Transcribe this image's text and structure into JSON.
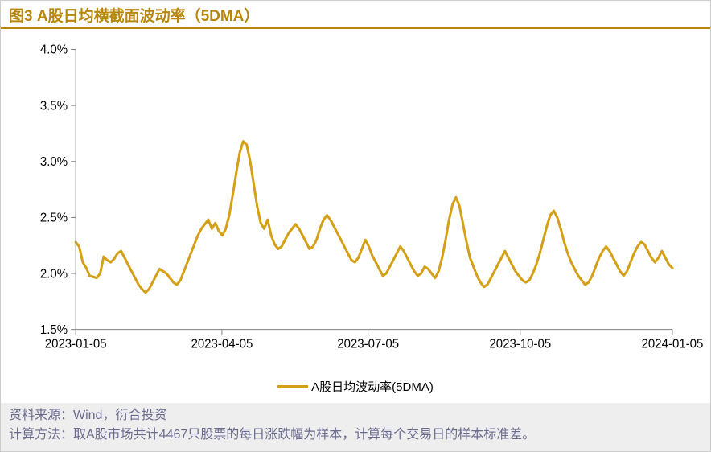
{
  "title": {
    "text": "图3  A股日均横截面波动率（5DMA）",
    "color": "#b8860b",
    "fontsize": 19,
    "fontweight": "bold"
  },
  "separator_color": "#b8860b",
  "chart": {
    "type": "line",
    "background_color": "#ffffff",
    "line_color": "#d4a017",
    "line_width": 3,
    "ylim": [
      1.5,
      4.0
    ],
    "ytick_step": 0.5,
    "yticks": [
      "1.5%",
      "2.0%",
      "2.5%",
      "3.0%",
      "3.5%",
      "4.0%"
    ],
    "xticks": [
      "2023-01-05",
      "2023-04-05",
      "2023-07-05",
      "2023-10-05",
      "2024-01-05"
    ],
    "xtick_positions": [
      0,
      0.245,
      0.49,
      0.745,
      1.0
    ],
    "axis_color": "#808080",
    "tick_color": "#808080",
    "grid": false,
    "label_fontsize": 15,
    "label_color": "#000000",
    "series": [
      {
        "name": "A股日均波动率(5DMA)",
        "values": [
          2.28,
          2.24,
          2.1,
          2.05,
          1.98,
          1.97,
          1.96,
          2.0,
          2.15,
          2.12,
          2.1,
          2.13,
          2.18,
          2.2,
          2.14,
          2.08,
          2.02,
          1.96,
          1.9,
          1.86,
          1.83,
          1.86,
          1.92,
          1.98,
          2.04,
          2.02,
          2.0,
          1.96,
          1.92,
          1.9,
          1.94,
          2.02,
          2.1,
          2.18,
          2.26,
          2.34,
          2.4,
          2.44,
          2.48,
          2.4,
          2.45,
          2.38,
          2.34,
          2.4,
          2.52,
          2.7,
          2.9,
          3.08,
          3.18,
          3.15,
          3.0,
          2.8,
          2.6,
          2.45,
          2.4,
          2.48,
          2.34,
          2.26,
          2.22,
          2.24,
          2.3,
          2.36,
          2.4,
          2.44,
          2.4,
          2.34,
          2.28,
          2.22,
          2.24,
          2.3,
          2.4,
          2.48,
          2.52,
          2.48,
          2.42,
          2.36,
          2.3,
          2.24,
          2.18,
          2.12,
          2.1,
          2.14,
          2.22,
          2.3,
          2.24,
          2.16,
          2.1,
          2.04,
          1.98,
          2.0,
          2.06,
          2.12,
          2.18,
          2.24,
          2.2,
          2.14,
          2.08,
          2.02,
          1.98,
          2.0,
          2.06,
          2.04,
          2.0,
          1.96,
          2.02,
          2.14,
          2.3,
          2.48,
          2.62,
          2.68,
          2.6,
          2.44,
          2.28,
          2.14,
          2.06,
          1.98,
          1.92,
          1.88,
          1.9,
          1.96,
          2.02,
          2.08,
          2.14,
          2.2,
          2.14,
          2.08,
          2.02,
          1.98,
          1.94,
          1.92,
          1.94,
          2.0,
          2.08,
          2.18,
          2.3,
          2.42,
          2.52,
          2.56,
          2.5,
          2.4,
          2.28,
          2.18,
          2.1,
          2.04,
          1.98,
          1.94,
          1.9,
          1.92,
          1.98,
          2.06,
          2.14,
          2.2,
          2.24,
          2.2,
          2.14,
          2.08,
          2.02,
          1.98,
          2.02,
          2.1,
          2.18,
          2.24,
          2.28,
          2.26,
          2.2,
          2.14,
          2.1,
          2.14,
          2.2,
          2.14,
          2.08,
          2.05
        ]
      }
    ]
  },
  "legend": {
    "position": "bottom-center",
    "items": [
      {
        "label": "A股日均波动率(5DMA)",
        "color": "#d4a017"
      }
    ],
    "fontsize": 15
  },
  "footer": {
    "lines": [
      "资料来源：Wind，衍合投资",
      "计算方法：取A股市场共计4467只股票的每日涨跌幅为样本，计算每个交易日的样本标准差。"
    ],
    "color": "#6b6b8f",
    "background_color": "#eeeeee",
    "fontsize": 16
  }
}
